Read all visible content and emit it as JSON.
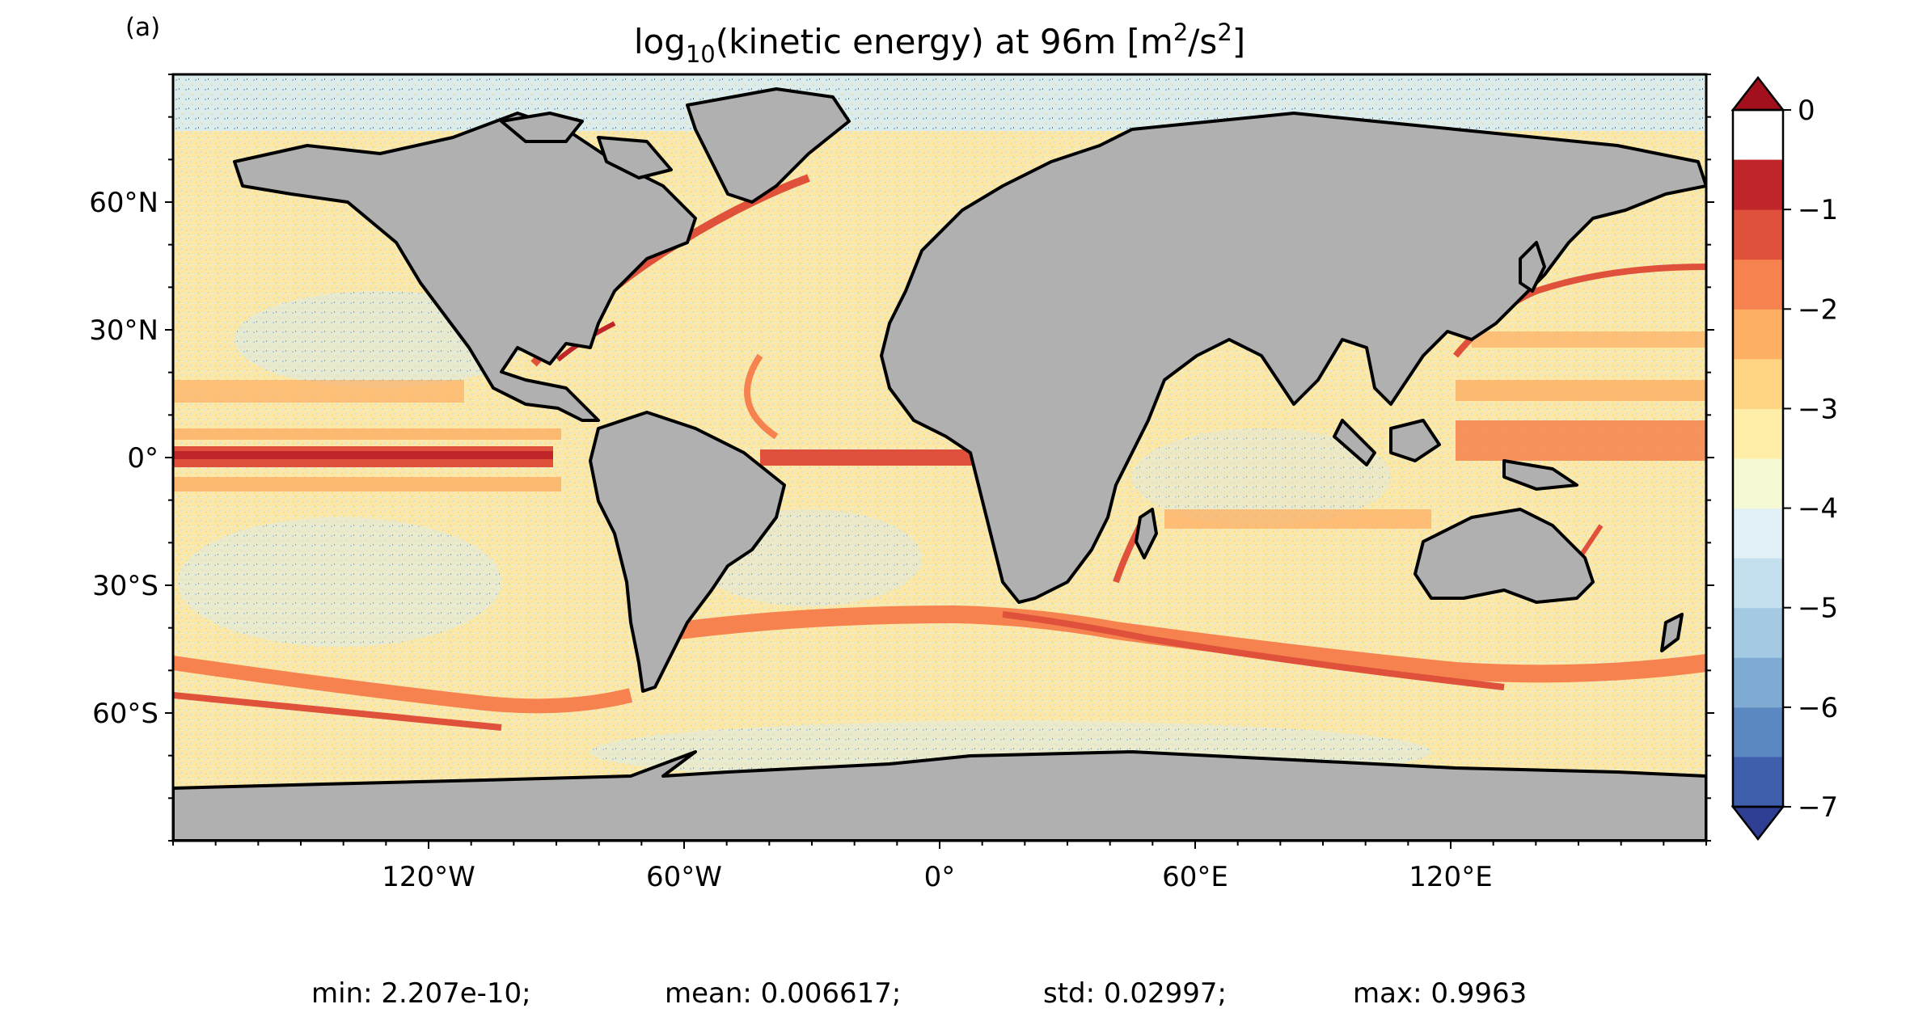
{
  "panel_label": "(a)",
  "title": {
    "prefix": "log",
    "subscript": "10",
    "middle": "(kinetic energy) at 96m [m",
    "sup1": "2",
    "slash": "/s",
    "sup2": "2",
    "suffix": "]"
  },
  "map": {
    "projection": "plate-carree",
    "lon_range": [
      -180,
      180
    ],
    "lat_range": [
      -90,
      90
    ],
    "land_color": "#b0b0b0",
    "coastline_color": "#000000",
    "lon_ticks": [
      {
        "value": -120,
        "label": "120°W"
      },
      {
        "value": -60,
        "label": "60°W"
      },
      {
        "value": 0,
        "label": "0°"
      },
      {
        "value": 60,
        "label": "60°E"
      },
      {
        "value": 120,
        "label": "120°E"
      }
    ],
    "lat_ticks": [
      {
        "value": 60,
        "label": "60°N"
      },
      {
        "value": 30,
        "label": "30°N"
      },
      {
        "value": 0,
        "label": "0°"
      },
      {
        "value": -30,
        "label": "30°S"
      },
      {
        "value": -60,
        "label": "60°S"
      }
    ]
  },
  "colorbar": {
    "min": -7,
    "max": 0,
    "extend": "both",
    "levels": [
      -7,
      -6.5,
      -6,
      -5.5,
      -5,
      -4.5,
      -4,
      -3.5,
      -3,
      -2.5,
      -2,
      -1.5,
      -1,
      -0.5,
      0
    ],
    "colors": [
      "#2e3f93",
      "#3f5fad",
      "#5b88c0",
      "#7fabd3",
      "#a3c9e3",
      "#c4dfee",
      "#e2f1f6",
      "#f5fad4",
      "#feeea8",
      "#fed683",
      "#fdaf63",
      "#f68250",
      "#e0513b",
      "#c02629",
      "#a2101e"
    ],
    "ticks": [
      {
        "value": 0,
        "label": "0"
      },
      {
        "value": -1,
        "label": "−1"
      },
      {
        "value": -2,
        "label": "−2"
      },
      {
        "value": -3,
        "label": "−3"
      },
      {
        "value": -4,
        "label": "−4"
      },
      {
        "value": -5,
        "label": "−5"
      },
      {
        "value": -6,
        "label": "−6"
      },
      {
        "value": -7,
        "label": "−7"
      }
    ]
  },
  "stats": {
    "min": "min: 2.207e-10;",
    "mean": "mean: 0.006617;",
    "std": "std: 0.02997;",
    "max": "max: 0.9963"
  }
}
